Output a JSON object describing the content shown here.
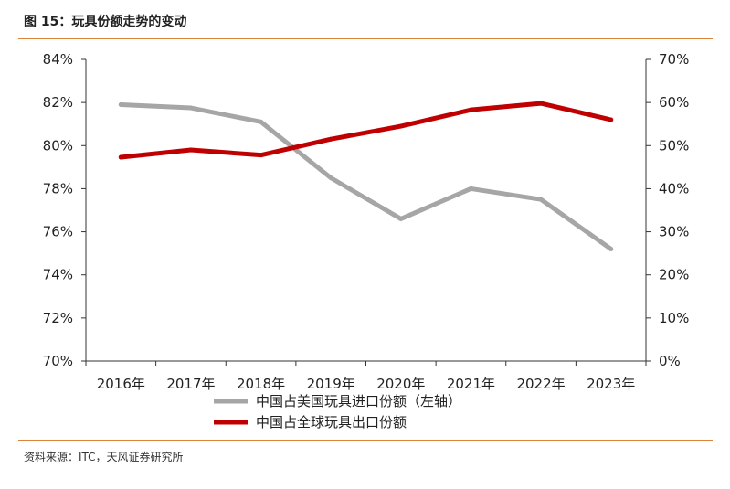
{
  "figure": {
    "title": "图 15：玩具份额走势的变动",
    "source": "资料来源：ITC，天风证券研究所"
  },
  "colors": {
    "us_share": "#a6a6a6",
    "global_share": "#c00000",
    "rule": "#d9843a",
    "axis": "#333333"
  },
  "chart_data": {
    "type": "line",
    "title": "图 15：玩具份额走势的变动",
    "categories": [
      "2016年",
      "2017年",
      "2018年",
      "2019年",
      "2020年",
      "2021年",
      "2022年",
      "2023年"
    ],
    "series": [
      {
        "name": "中国占美国玩具进口份额（左轴）",
        "axis": "left",
        "color": "#a6a6a6",
        "values": [
          81.9,
          81.75,
          81.1,
          78.5,
          76.6,
          78.0,
          77.5,
          75.2
        ]
      },
      {
        "name": "中国占全球玩具出口份额",
        "axis": "right",
        "color": "#c00000",
        "values": [
          47.3,
          49.0,
          47.8,
          51.5,
          54.5,
          58.3,
          59.8,
          56.0
        ]
      }
    ],
    "y_left": {
      "min": 70,
      "max": 84,
      "step": 2,
      "ticks": [
        "70%",
        "72%",
        "74%",
        "76%",
        "78%",
        "80%",
        "82%",
        "84%"
      ]
    },
    "y_right": {
      "min": 0,
      "max": 70,
      "step": 10,
      "ticks": [
        "0%",
        "10%",
        "20%",
        "30%",
        "40%",
        "50%",
        "60%",
        "70%"
      ]
    },
    "grid": false,
    "legend_position": "bottom"
  }
}
